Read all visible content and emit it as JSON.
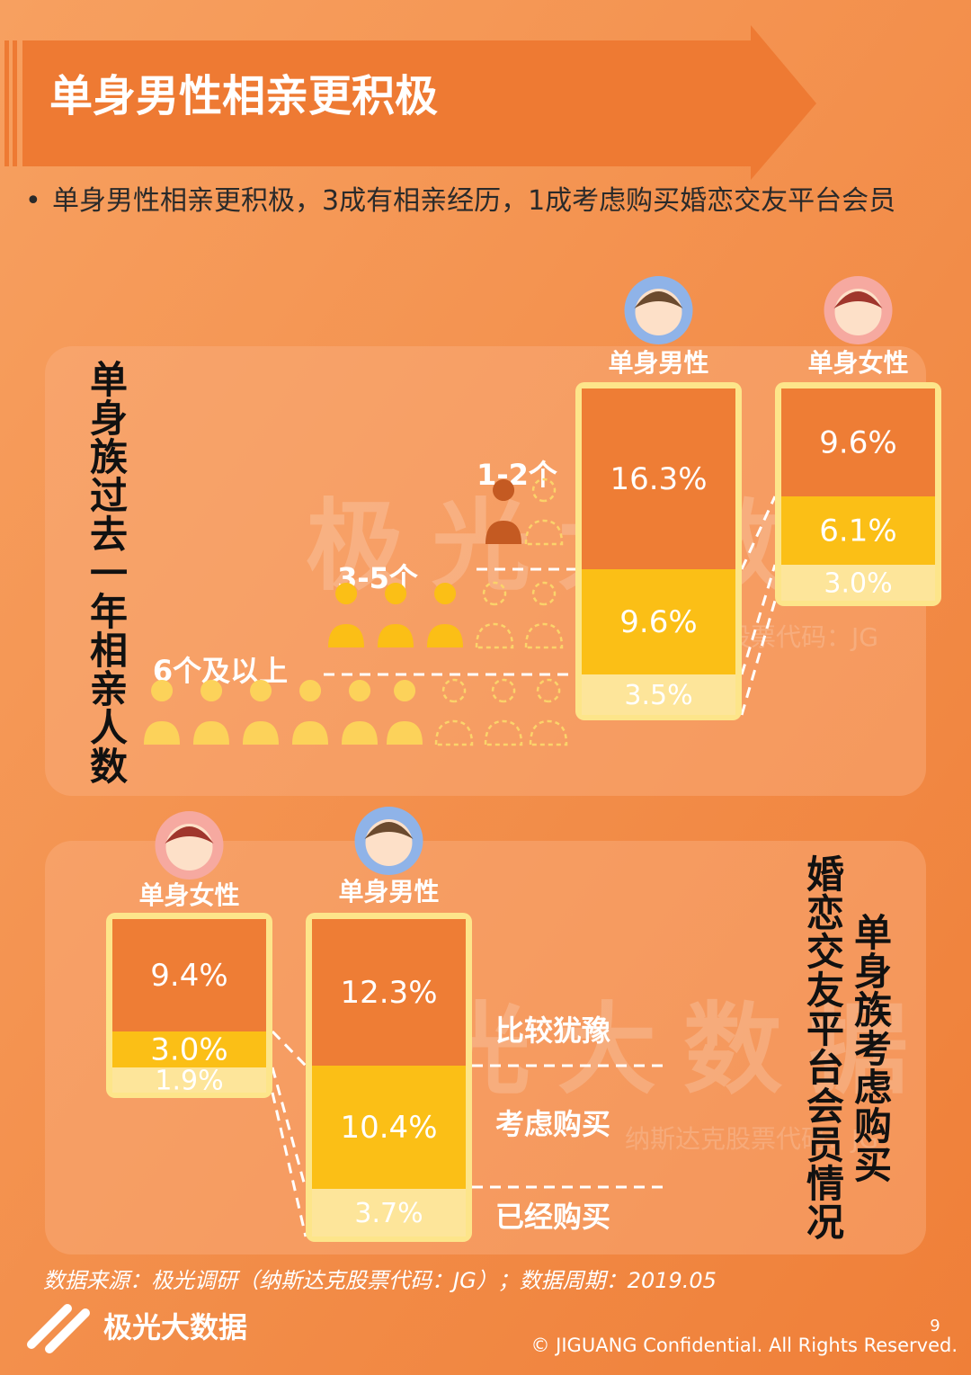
{
  "header": {
    "title": "单身男性相亲更积极"
  },
  "bullet": "单身男性相亲更积极，3成有相亲经历，1成考虑购买婚恋交友平台会员",
  "watermark": {
    "brand": "极光大数据",
    "code": "纳斯达克股票代码：JG"
  },
  "panel1": {
    "title": "单身族过去一年相亲人数",
    "levels": [
      "1-2个",
      "3-5个",
      "6个及以上"
    ],
    "groups": [
      {
        "name": "单身男性",
        "segments": [
          "16.3%",
          "9.6%",
          "3.5%"
        ]
      },
      {
        "name": "单身女性",
        "segments": [
          "9.6%",
          "6.1%",
          "3.0%"
        ]
      }
    ]
  },
  "panel2": {
    "title": "单身族考虑购买",
    "title2": "婚恋交友平台会员情况",
    "levels": [
      "比较犹豫",
      "考虑购买",
      "已经购买"
    ],
    "groups": [
      {
        "name": "单身女性",
        "segments": [
          "9.4%",
          "3.0%",
          "1.9%"
        ]
      },
      {
        "name": "单身男性",
        "segments": [
          "12.3%",
          "10.4%",
          "3.7%"
        ]
      }
    ]
  },
  "footer": {
    "source": "数据来源：极光调研（纳斯达克股票代码：JG）；数据周期：2019.05",
    "brand": "极光大数据",
    "page": "9",
    "copyright": "© JIGUANG Confidential. All Rights Reserved."
  }
}
